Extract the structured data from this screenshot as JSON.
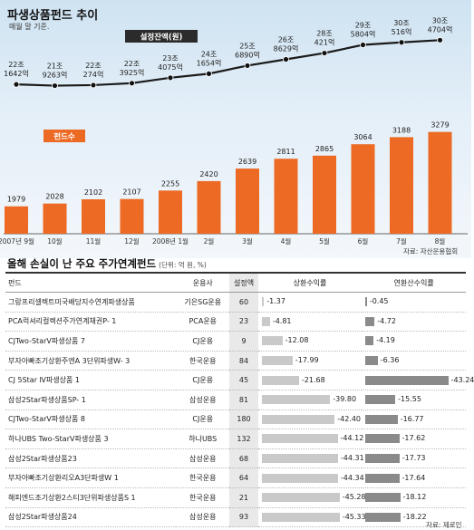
{
  "top": {
    "title": "파생상품펀드 추이",
    "subtitle": "매월 말 기준.",
    "source": "자료: 자산운용협회"
  },
  "bottom": {
    "title": "올해 손실이 난 주요 주가연계펀드",
    "unit": "(단위: 억 원, %)",
    "source": "자료: 제로인",
    "headers": {
      "name": "펀드",
      "company": "운용사",
      "size": "설정액",
      "ret": "상환수익률",
      "ann": "연환산수익률"
    }
  },
  "chart_data": [
    {
      "type": "bar+line",
      "categories": [
        "2007년 9월",
        "10월",
        "11월",
        "12월",
        "2008년 1월",
        "2월",
        "3월",
        "4월",
        "5월",
        "6월",
        "7월",
        "8월"
      ],
      "series": [
        {
          "name": "펀드수",
          "type": "bar",
          "color": "#ec6a24",
          "values": [
            1979,
            2028,
            2102,
            2107,
            2255,
            2420,
            2639,
            2811,
            2865,
            3064,
            3188,
            3279
          ]
        },
        {
          "name": "설정잔액(원)",
          "type": "line",
          "color": "#1a1a1a",
          "values": [
            "22조 1642억",
            "21조 9263억",
            "22조 274억",
            "22조 3925억",
            "23조 4075억",
            "24조 1654억",
            "25조 6890억",
            "26조 8629억",
            "28조 421억",
            "29조 5804억",
            "30조 516억",
            "30조 4704억"
          ]
        }
      ]
    },
    {
      "type": "table",
      "columns": [
        "펀드",
        "운용사",
        "설정액",
        "상환수익률",
        "연환산수익률"
      ],
      "rows": [
        {
          "name": "그랑프리셀렉트미국배당지수연계파생상품",
          "company": "기은SG운용",
          "size": "60",
          "ret": -1.37,
          "ann": -0.45,
          "ret_label": "-1.37",
          "ann_label": "-0.45"
        },
        {
          "name": "PCA럭셔리컬렉션주가연계채권P- 1",
          "company": "PCA운용",
          "size": "23",
          "ret": -4.81,
          "ann": -4.72,
          "ret_label": "-4.81",
          "ann_label": "-4.72"
        },
        {
          "name": "CJTwo-StarV파생상품 7",
          "company": "CJ운용",
          "size": "9",
          "ret": -12.08,
          "ann": -4.19,
          "ret_label": "-12.08",
          "ann_label": "-4.19"
        },
        {
          "name": "부자아빠조기상환주엔A 3단위파생W- 3",
          "company": "한국운용",
          "size": "84",
          "ret": -17.99,
          "ann": -6.36,
          "ret_label": "-17.99",
          "ann_label": "-6.36"
        },
        {
          "name": "CJ 5Star Ⅳ파생상품 1",
          "company": "CJ운용",
          "size": "45",
          "ret": -21.68,
          "ann": -43.24,
          "ret_label": "-21.68",
          "ann_label": "-43.24"
        },
        {
          "name": "삼성2Star파생상품SP- 1",
          "company": "삼성운용",
          "size": "81",
          "ret": -39.8,
          "ann": -15.55,
          "ret_label": "-39.80",
          "ann_label": "-15.55"
        },
        {
          "name": "CJTwo-StarV파생상품 8",
          "company": "CJ운용",
          "size": "180",
          "ret": -42.4,
          "ann": -16.77,
          "ret_label": "-42.40",
          "ann_label": "-16.77"
        },
        {
          "name": "하나UBS Two-StarV파생상품 3",
          "company": "하나UBS",
          "size": "132",
          "ret": -44.12,
          "ann": -17.62,
          "ret_label": "-44.12",
          "ann_label": "-17.62"
        },
        {
          "name": "삼성2Star파생상품23",
          "company": "삼성운용",
          "size": "68",
          "ret": -44.31,
          "ann": -17.73,
          "ret_label": "-44.31",
          "ann_label": "-17.73"
        },
        {
          "name": "부자아빠조기상환리오A3단파생W 1",
          "company": "한국운용",
          "size": "64",
          "ret": -44.34,
          "ann": -17.64,
          "ret_label": "-44.34",
          "ann_label": "-17.64"
        },
        {
          "name": "해피엔드조기상환2스티3단위파생상품S 1",
          "company": "한국운용",
          "size": "21",
          "ret": -45.28,
          "ann": -18.12,
          "ret_label": "-45.28",
          "ann_label": "-18.12"
        },
        {
          "name": "삼성2Star파생상품24",
          "company": "삼성운용",
          "size": "93",
          "ret": -45.33,
          "ann": -18.22,
          "ret_label": "-45.33",
          "ann_label": "-18.22"
        }
      ]
    }
  ]
}
